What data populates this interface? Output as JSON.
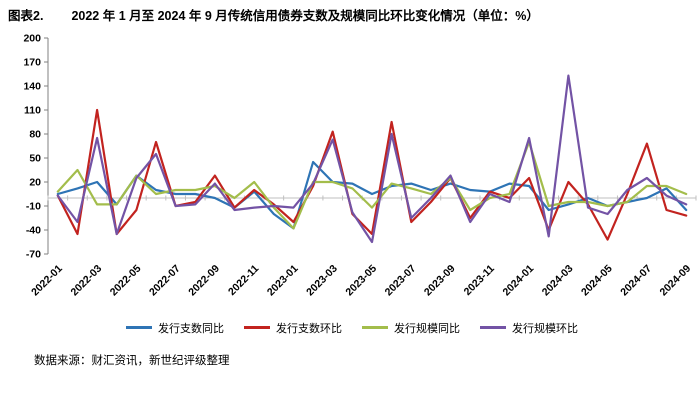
{
  "title": {
    "label": "图表2.",
    "text": "2022 年 1 月至 2024 年 9 月传统信用债券支数及规模同比环比变化情况（单位：%）"
  },
  "source_note": "数据来源：财汇资讯，新世纪评级整理",
  "chart_data": {
    "type": "line",
    "title": "2022 年 1 月至 2024 年 9 月传统信用债券支数及规模同比环比变化情况（单位：%）",
    "xlabel": "",
    "ylabel": "",
    "ylim": [
      -70,
      200
    ],
    "y_ticks": [
      200,
      170,
      140,
      110,
      80,
      50,
      20,
      -10,
      -40,
      -70
    ],
    "x_tick_step": 2,
    "grid": false,
    "legend_position": "bottom",
    "x": [
      "2022-01",
      "2022-02",
      "2022-03",
      "2022-04",
      "2022-05",
      "2022-06",
      "2022-07",
      "2022-08",
      "2022-09",
      "2022-10",
      "2022-11",
      "2022-12",
      "2023-01",
      "2023-02",
      "2023-03",
      "2023-04",
      "2023-05",
      "2023-06",
      "2023-07",
      "2023-08",
      "2023-09",
      "2023-10",
      "2023-11",
      "2023-12",
      "2024-01",
      "2024-02",
      "2024-03",
      "2024-04",
      "2024-05",
      "2024-06",
      "2024-07",
      "2024-08",
      "2024-09"
    ],
    "x_tick_labels": [
      "2022-01",
      "2022-03",
      "2022-05",
      "2022-07",
      "2022-09",
      "2022-11",
      "2023-01",
      "2023-03",
      "2023-05",
      "2023-07",
      "2023-09",
      "2023-11",
      "2024-01",
      "2024-03",
      "2024-05",
      "2024-07",
      "2024-09"
    ],
    "series": [
      {
        "name": "发行支数同比",
        "color": "#2e74b5",
        "values": [
          5,
          12,
          20,
          -8,
          28,
          10,
          5,
          5,
          0,
          -12,
          8,
          -20,
          -38,
          45,
          20,
          18,
          5,
          15,
          18,
          10,
          18,
          10,
          8,
          18,
          15,
          -15,
          -8,
          0,
          -10,
          -5,
          0,
          12,
          -15
        ]
      },
      {
        "name": "发行支数环比",
        "color": "#c2231f",
        "values": [
          3,
          -45,
          110,
          -45,
          -15,
          70,
          -10,
          -5,
          28,
          -12,
          10,
          -8,
          -30,
          15,
          83,
          -20,
          -45,
          95,
          -30,
          -5,
          25,
          -25,
          8,
          0,
          25,
          -40,
          20,
          -8,
          -52,
          5,
          68,
          -15,
          -22
        ]
      },
      {
        "name": "发行规模同比",
        "color": "#a3bd4b",
        "values": [
          8,
          35,
          -8,
          -8,
          28,
          5,
          10,
          10,
          15,
          0,
          20,
          -12,
          -38,
          20,
          20,
          12,
          -12,
          18,
          12,
          5,
          25,
          -15,
          0,
          5,
          70,
          -10,
          -5,
          -5,
          -10,
          -5,
          15,
          15,
          5
        ]
      },
      {
        "name": "发行规模环比",
        "color": "#7353a5",
        "values": [
          3,
          -30,
          75,
          -45,
          25,
          55,
          -10,
          -8,
          18,
          -15,
          -12,
          -10,
          -12,
          18,
          73,
          -18,
          -55,
          80,
          -25,
          0,
          28,
          -30,
          5,
          -5,
          75,
          -48,
          153,
          -12,
          -20,
          10,
          25,
          3,
          -8
        ]
      }
    ]
  }
}
